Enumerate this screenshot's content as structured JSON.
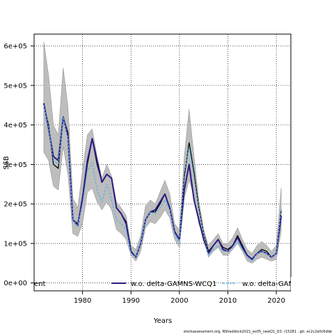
{
  "chart_data": {
    "type": "line",
    "xlabel": "Years",
    "ylabel": "SSB",
    "xlim": [
      1970,
      2023
    ],
    "ylim": [
      -20000,
      630000
    ],
    "grid": true,
    "x_ticks": [
      1980,
      1990,
      2000,
      2010,
      2020
    ],
    "x_tick_labels": [
      "1980",
      "1990",
      "2000",
      "2010",
      "2020"
    ],
    "y_ticks": [
      0,
      100000,
      200000,
      300000,
      400000,
      500000,
      600000
    ],
    "y_tick_labels": [
      "0e+00",
      "1e+05",
      "2e+05",
      "3e+05",
      "4e+05",
      "5e+05",
      "6e+05"
    ],
    "footnote": "stockassessment.org, NShaddock2021_ex05_newQ1_Q3, r15281 , git: ec2c2a0c6dde",
    "colors": {
      "band": "#bdbdbd",
      "band_edge": "#888888",
      "reference": "#000000",
      "series1": "#2b1a84",
      "series2": "#4fb3e8"
    },
    "legend": {
      "placement": "bottom",
      "entries": [
        "ent",
        "w.o. delta-GAMNS-WCQ1",
        "w.o. delta-GAM"
      ]
    },
    "x": [
      1972,
      1973,
      1974,
      1975,
      1976,
      1977,
      1978,
      1979,
      1980,
      1981,
      1982,
      1983,
      1984,
      1985,
      1986,
      1987,
      1988,
      1989,
      1990,
      1991,
      1992,
      1993,
      1994,
      1995,
      1996,
      1997,
      1998,
      1999,
      2000,
      2001,
      2002,
      2003,
      2004,
      2005,
      2006,
      2007,
      2008,
      2009,
      2010,
      2011,
      2012,
      2013,
      2014,
      2015,
      2016,
      2017,
      2018,
      2019,
      2020,
      2021
    ],
    "band_lower": [
      330000,
      310000,
      245000,
      235000,
      345000,
      275000,
      125000,
      118000,
      150000,
      230000,
      240000,
      205000,
      185000,
      205000,
      185000,
      135000,
      125000,
      110000,
      70000,
      55000,
      80000,
      140000,
      155000,
      150000,
      165000,
      185000,
      165000,
      110000,
      90000,
      215000,
      260000,
      220000,
      150000,
      115000,
      65000,
      80000,
      90000,
      70000,
      70000,
      85000,
      100000,
      80000,
      55000,
      50000,
      60000,
      65000,
      60000,
      55000,
      60000,
      130000
    ],
    "band_upper": [
      610000,
      525000,
      400000,
      375000,
      545000,
      445000,
      215000,
      190000,
      285000,
      375000,
      390000,
      320000,
      265000,
      300000,
      270000,
      205000,
      190000,
      170000,
      95000,
      85000,
      120000,
      195000,
      210000,
      200000,
      230000,
      260000,
      225000,
      150000,
      135000,
      320000,
      440000,
      320000,
      210000,
      135000,
      95000,
      110000,
      125000,
      100000,
      100000,
      115000,
      140000,
      110000,
      85000,
      75000,
      95000,
      105000,
      95000,
      80000,
      95000,
      240000
    ],
    "series": [
      {
        "values": [
          450000,
          400000,
          300000,
          290000,
          420000,
          380000,
          160000,
          150000,
          210000,
          300000,
          365000,
          300000,
          255000,
          275000,
          265000,
          190000,
          175000,
          155000,
          80000,
          65000,
          100000,
          160000,
          180000,
          180000,
          200000,
          225000,
          190000,
          130000,
          110000,
          270000,
          355000,
          280000,
          190000,
          125000,
          80000,
          95000,
          110000,
          90000,
          85000,
          95000,
          120000,
          95000,
          70000,
          60000,
          75000,
          85000,
          80000,
          65000,
          75000,
          185000
        ]
      },
      {
        "name": "w.o. delta-GAMNS-WCQ1",
        "values": [
          455000,
          390000,
          320000,
          310000,
          420000,
          370000,
          160000,
          145000,
          215000,
          310000,
          365000,
          310000,
          255000,
          275000,
          265000,
          190000,
          175000,
          150000,
          80000,
          65000,
          100000,
          160000,
          180000,
          185000,
          205000,
          225000,
          190000,
          130000,
          110000,
          235000,
          300000,
          210000,
          160000,
          110000,
          75000,
          95000,
          110000,
          85000,
          80000,
          95000,
          115000,
          90000,
          70000,
          60000,
          75000,
          80000,
          75000,
          65000,
          75000,
          170000
        ]
      },
      {
        "name": "w.o. delta-GAM",
        "values": [
          450000,
          395000,
          310000,
          300000,
          420000,
          365000,
          160000,
          145000,
          200000,
          285000,
          305000,
          235000,
          205000,
          250000,
          210000,
          160000,
          150000,
          135000,
          75000,
          65000,
          100000,
          160000,
          180000,
          175000,
          190000,
          210000,
          185000,
          125000,
          100000,
          280000,
          345000,
          270000,
          185000,
          125000,
          70000,
          85000,
          95000,
          80000,
          80000,
          90000,
          105000,
          85000,
          65000,
          55000,
          75000,
          80000,
          75000,
          65000,
          75000,
          190000
        ]
      }
    ]
  }
}
